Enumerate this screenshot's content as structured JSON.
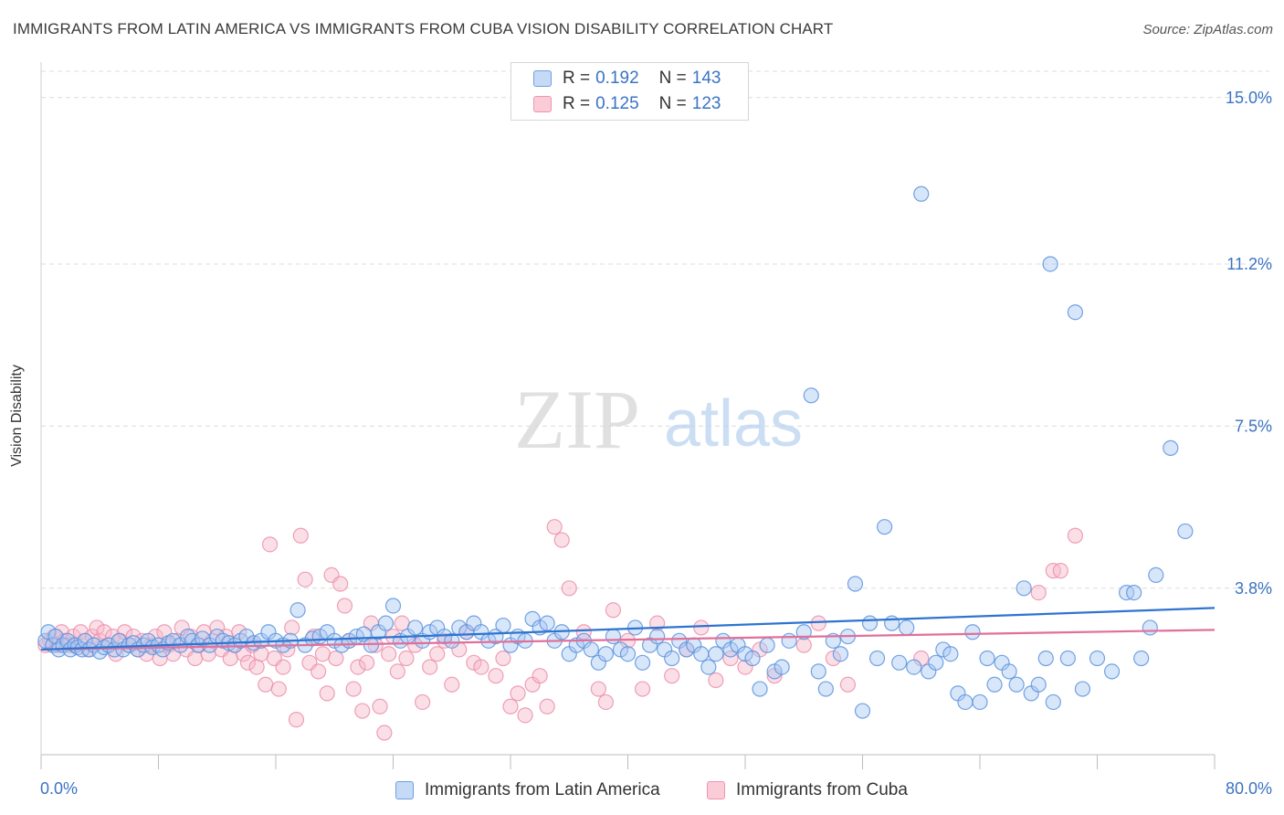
{
  "title": "IMMIGRANTS FROM LATIN AMERICA VS IMMIGRANTS FROM CUBA VISION DISABILITY CORRELATION CHART",
  "source": "Source: ZipAtlas.com",
  "watermark": {
    "zip": "ZIP",
    "atlas": "atlas"
  },
  "legend": {
    "rows": [
      {
        "r_label": "R =",
        "r_value": "0.192",
        "n_label": "N =",
        "n_value": "143"
      },
      {
        "r_label": "R =",
        "r_value": "0.125",
        "n_label": "N =",
        "n_value": "123"
      }
    ]
  },
  "bottom_legend": {
    "series1": "Immigrants from Latin America",
    "series2": "Immigrants from Cuba"
  },
  "colors": {
    "series1_fill": "#a9c8f2",
    "series1_stroke": "#5b93de",
    "series1_line": "#2f74d0",
    "series2_fill": "#f7b8c9",
    "series2_stroke": "#ec8fab",
    "series2_line": "#e0709a",
    "axis_text": "#3a73c4",
    "grid": "#dcdcdc"
  },
  "chart_data": {
    "type": "scatter",
    "title": "IMMIGRANTS FROM LATIN AMERICA VS IMMIGRANTS FROM CUBA VISION DISABILITY CORRELATION CHART",
    "xlabel": "",
    "ylabel": "Vision Disability",
    "xlim": [
      0,
      80
    ],
    "ylim": [
      0,
      15.6
    ],
    "x_tick_labels": [
      "0.0%",
      "80.0%"
    ],
    "y_ticks": [
      3.8,
      7.5,
      11.2,
      15.0
    ],
    "y_tick_labels": [
      "3.8%",
      "7.5%",
      "11.2%",
      "15.0%"
    ],
    "grid": true,
    "legend_position": "top-center",
    "series": [
      {
        "name": "Immigrants from Latin America",
        "r": 0.192,
        "n": 143,
        "trend": {
          "x": [
            0,
            80
          ],
          "y": [
            2.4,
            3.35
          ]
        },
        "points": [
          [
            0.3,
            2.6
          ],
          [
            0.5,
            2.8
          ],
          [
            0.8,
            2.5
          ],
          [
            1.0,
            2.7
          ],
          [
            1.2,
            2.4
          ],
          [
            1.5,
            2.5
          ],
          [
            1.8,
            2.6
          ],
          [
            2.0,
            2.4
          ],
          [
            2.3,
            2.5
          ],
          [
            2.5,
            2.45
          ],
          [
            2.8,
            2.4
          ],
          [
            3.0,
            2.6
          ],
          [
            3.3,
            2.4
          ],
          [
            3.6,
            2.5
          ],
          [
            4.0,
            2.35
          ],
          [
            4.3,
            2.45
          ],
          [
            4.6,
            2.5
          ],
          [
            5.0,
            2.4
          ],
          [
            5.3,
            2.6
          ],
          [
            5.6,
            2.4
          ],
          [
            6.0,
            2.5
          ],
          [
            6.3,
            2.55
          ],
          [
            6.6,
            2.4
          ],
          [
            7.0,
            2.5
          ],
          [
            7.3,
            2.6
          ],
          [
            7.6,
            2.45
          ],
          [
            8.0,
            2.5
          ],
          [
            8.3,
            2.4
          ],
          [
            8.7,
            2.55
          ],
          [
            9.0,
            2.6
          ],
          [
            9.5,
            2.5
          ],
          [
            10.0,
            2.7
          ],
          [
            10.3,
            2.6
          ],
          [
            10.7,
            2.5
          ],
          [
            11.0,
            2.65
          ],
          [
            11.5,
            2.5
          ],
          [
            12.0,
            2.7
          ],
          [
            12.4,
            2.6
          ],
          [
            12.8,
            2.55
          ],
          [
            13.2,
            2.5
          ],
          [
            13.6,
            2.6
          ],
          [
            14.0,
            2.7
          ],
          [
            14.5,
            2.55
          ],
          [
            15.0,
            2.6
          ],
          [
            15.5,
            2.8
          ],
          [
            16.0,
            2.6
          ],
          [
            16.5,
            2.5
          ],
          [
            17.0,
            2.6
          ],
          [
            17.5,
            3.3
          ],
          [
            18.0,
            2.5
          ],
          [
            18.5,
            2.65
          ],
          [
            19.0,
            2.7
          ],
          [
            19.5,
            2.8
          ],
          [
            20.0,
            2.6
          ],
          [
            20.5,
            2.5
          ],
          [
            21.0,
            2.6
          ],
          [
            21.5,
            2.7
          ],
          [
            22.0,
            2.75
          ],
          [
            22.5,
            2.5
          ],
          [
            23.0,
            2.8
          ],
          [
            23.5,
            3.0
          ],
          [
            24.0,
            3.4
          ],
          [
            24.5,
            2.6
          ],
          [
            25.0,
            2.7
          ],
          [
            25.5,
            2.9
          ],
          [
            26.0,
            2.6
          ],
          [
            26.5,
            2.8
          ],
          [
            27.0,
            2.9
          ],
          [
            27.5,
            2.7
          ],
          [
            28.0,
            2.6
          ],
          [
            28.5,
            2.9
          ],
          [
            29.0,
            2.8
          ],
          [
            29.5,
            3.0
          ],
          [
            30.0,
            2.8
          ],
          [
            30.5,
            2.6
          ],
          [
            31.0,
            2.7
          ],
          [
            31.5,
            2.95
          ],
          [
            32.0,
            2.5
          ],
          [
            32.5,
            2.7
          ],
          [
            33.0,
            2.6
          ],
          [
            33.5,
            3.1
          ],
          [
            34.0,
            2.9
          ],
          [
            34.5,
            3.0
          ],
          [
            35.0,
            2.6
          ],
          [
            35.5,
            2.8
          ],
          [
            36.0,
            2.3
          ],
          [
            36.5,
            2.5
          ],
          [
            37.0,
            2.6
          ],
          [
            37.5,
            2.4
          ],
          [
            38.0,
            2.1
          ],
          [
            38.5,
            2.3
          ],
          [
            39.0,
            2.7
          ],
          [
            39.5,
            2.4
          ],
          [
            40.0,
            2.3
          ],
          [
            40.5,
            2.9
          ],
          [
            41.0,
            2.1
          ],
          [
            41.5,
            2.5
          ],
          [
            42.0,
            2.7
          ],
          [
            42.5,
            2.4
          ],
          [
            43.0,
            2.2
          ],
          [
            43.5,
            2.6
          ],
          [
            44.0,
            2.4
          ],
          [
            44.5,
            2.5
          ],
          [
            45.0,
            2.3
          ],
          [
            45.5,
            2.0
          ],
          [
            46.0,
            2.3
          ],
          [
            46.5,
            2.6
          ],
          [
            47.0,
            2.4
          ],
          [
            47.5,
            2.5
          ],
          [
            48.0,
            2.3
          ],
          [
            48.5,
            2.2
          ],
          [
            49.0,
            1.5
          ],
          [
            49.5,
            2.5
          ],
          [
            50.0,
            1.9
          ],
          [
            50.5,
            2.0
          ],
          [
            51.0,
            2.6
          ],
          [
            52.0,
            2.8
          ],
          [
            52.5,
            8.2
          ],
          [
            53.0,
            1.9
          ],
          [
            53.5,
            1.5
          ],
          [
            54.0,
            2.6
          ],
          [
            54.5,
            2.3
          ],
          [
            55.0,
            2.7
          ],
          [
            55.5,
            3.9
          ],
          [
            56.0,
            1.0
          ],
          [
            56.5,
            3.0
          ],
          [
            57.0,
            2.2
          ],
          [
            57.5,
            5.2
          ],
          [
            58.0,
            3.0
          ],
          [
            58.5,
            2.1
          ],
          [
            59.0,
            2.9
          ],
          [
            59.5,
            2.0
          ],
          [
            60.0,
            12.8
          ],
          [
            60.5,
            1.9
          ],
          [
            61.0,
            2.1
          ],
          [
            61.5,
            2.4
          ],
          [
            62.0,
            2.3
          ],
          [
            62.5,
            1.4
          ],
          [
            63.0,
            1.2
          ],
          [
            63.5,
            2.8
          ],
          [
            64.0,
            1.2
          ],
          [
            64.5,
            2.2
          ],
          [
            65.0,
            1.6
          ],
          [
            65.5,
            2.1
          ],
          [
            66.0,
            1.9
          ],
          [
            66.5,
            1.6
          ],
          [
            67.0,
            3.8
          ],
          [
            67.5,
            1.4
          ],
          [
            68.0,
            1.6
          ],
          [
            68.5,
            2.2
          ],
          [
            68.8,
            11.2
          ],
          [
            69.0,
            1.2
          ],
          [
            70.0,
            2.2
          ],
          [
            70.5,
            10.1
          ],
          [
            71.0,
            1.5
          ],
          [
            72.0,
            2.2
          ],
          [
            73.0,
            1.9
          ],
          [
            74.0,
            3.7
          ],
          [
            74.5,
            3.7
          ],
          [
            75.0,
            2.2
          ],
          [
            75.6,
            2.9
          ],
          [
            76.0,
            4.1
          ],
          [
            77.0,
            7.0
          ],
          [
            78.0,
            5.1
          ]
        ]
      },
      {
        "name": "Immigrants from Cuba",
        "r": 0.125,
        "n": 123,
        "trend": {
          "x": [
            0,
            80
          ],
          "y": [
            2.4,
            2.85
          ]
        },
        "points": [
          [
            0.3,
            2.5
          ],
          [
            0.6,
            2.6
          ],
          [
            0.9,
            2.7
          ],
          [
            1.1,
            2.5
          ],
          [
            1.4,
            2.8
          ],
          [
            1.6,
            2.6
          ],
          [
            1.9,
            2.5
          ],
          [
            2.2,
            2.7
          ],
          [
            2.4,
            2.5
          ],
          [
            2.7,
            2.8
          ],
          [
            3.0,
            2.6
          ],
          [
            3.2,
            2.4
          ],
          [
            3.5,
            2.7
          ],
          [
            3.8,
            2.9
          ],
          [
            4.0,
            2.6
          ],
          [
            4.3,
            2.8
          ],
          [
            4.6,
            2.5
          ],
          [
            4.9,
            2.7
          ],
          [
            5.1,
            2.3
          ],
          [
            5.4,
            2.6
          ],
          [
            5.7,
            2.8
          ],
          [
            6.0,
            2.5
          ],
          [
            6.3,
            2.7
          ],
          [
            6.6,
            2.4
          ],
          [
            6.9,
            2.6
          ],
          [
            7.2,
            2.3
          ],
          [
            7.5,
            2.5
          ],
          [
            7.8,
            2.7
          ],
          [
            8.1,
            2.2
          ],
          [
            8.4,
            2.8
          ],
          [
            8.7,
            2.5
          ],
          [
            9.0,
            2.3
          ],
          [
            9.3,
            2.6
          ],
          [
            9.6,
            2.9
          ],
          [
            9.9,
            2.4
          ],
          [
            10.2,
            2.7
          ],
          [
            10.5,
            2.2
          ],
          [
            10.8,
            2.5
          ],
          [
            11.1,
            2.8
          ],
          [
            11.4,
            2.3
          ],
          [
            11.7,
            2.6
          ],
          [
            12.0,
            2.9
          ],
          [
            12.3,
            2.4
          ],
          [
            12.6,
            2.7
          ],
          [
            12.9,
            2.2
          ],
          [
            13.2,
            2.5
          ],
          [
            13.5,
            2.8
          ],
          [
            13.8,
            2.3
          ],
          [
            14.1,
            2.1
          ],
          [
            14.4,
            2.5
          ],
          [
            14.7,
            2.0
          ],
          [
            15.0,
            2.3
          ],
          [
            15.3,
            1.6
          ],
          [
            15.6,
            4.8
          ],
          [
            15.9,
            2.2
          ],
          [
            16.2,
            1.5
          ],
          [
            16.5,
            2.0
          ],
          [
            16.8,
            2.4
          ],
          [
            17.1,
            2.9
          ],
          [
            17.4,
            0.8
          ],
          [
            17.7,
            5.0
          ],
          [
            18.0,
            4.0
          ],
          [
            18.3,
            2.1
          ],
          [
            18.6,
            2.7
          ],
          [
            18.9,
            1.9
          ],
          [
            19.2,
            2.3
          ],
          [
            19.5,
            1.4
          ],
          [
            19.8,
            4.1
          ],
          [
            20.1,
            2.2
          ],
          [
            20.4,
            3.9
          ],
          [
            20.7,
            3.4
          ],
          [
            21.0,
            2.6
          ],
          [
            21.3,
            1.5
          ],
          [
            21.6,
            2.0
          ],
          [
            21.9,
            1.0
          ],
          [
            22.2,
            2.1
          ],
          [
            22.5,
            3.0
          ],
          [
            22.8,
            2.5
          ],
          [
            23.1,
            1.1
          ],
          [
            23.4,
            0.5
          ],
          [
            23.7,
            2.3
          ],
          [
            24.0,
            2.7
          ],
          [
            24.3,
            1.9
          ],
          [
            24.6,
            3.0
          ],
          [
            24.9,
            2.2
          ],
          [
            25.5,
            2.5
          ],
          [
            26.0,
            1.2
          ],
          [
            26.5,
            2.0
          ],
          [
            27.0,
            2.3
          ],
          [
            27.5,
            2.6
          ],
          [
            28.0,
            1.6
          ],
          [
            28.5,
            2.4
          ],
          [
            29.0,
            2.8
          ],
          [
            29.5,
            2.1
          ],
          [
            30.0,
            2.0
          ],
          [
            31.0,
            1.8
          ],
          [
            31.5,
            2.2
          ],
          [
            32.0,
            1.1
          ],
          [
            32.5,
            1.4
          ],
          [
            33.0,
            0.9
          ],
          [
            33.5,
            1.6
          ],
          [
            34.0,
            1.8
          ],
          [
            34.5,
            1.1
          ],
          [
            35.0,
            5.2
          ],
          [
            35.5,
            4.9
          ],
          [
            36.0,
            3.8
          ],
          [
            37.0,
            2.8
          ],
          [
            38.0,
            1.5
          ],
          [
            38.5,
            1.2
          ],
          [
            39.0,
            3.3
          ],
          [
            40.0,
            2.6
          ],
          [
            41.0,
            1.5
          ],
          [
            42.0,
            3.0
          ],
          [
            43.0,
            1.8
          ],
          [
            44.0,
            2.4
          ],
          [
            45.0,
            2.9
          ],
          [
            46.0,
            1.7
          ],
          [
            47.0,
            2.2
          ],
          [
            48.0,
            2.0
          ],
          [
            49.0,
            2.4
          ],
          [
            50.0,
            1.8
          ],
          [
            52.0,
            2.5
          ],
          [
            53.0,
            3.0
          ],
          [
            54.0,
            2.2
          ],
          [
            55.0,
            1.6
          ],
          [
            60.0,
            2.2
          ],
          [
            68.0,
            3.7
          ],
          [
            69.0,
            4.2
          ],
          [
            69.5,
            4.2
          ],
          [
            70.5,
            5.0
          ]
        ]
      }
    ]
  }
}
